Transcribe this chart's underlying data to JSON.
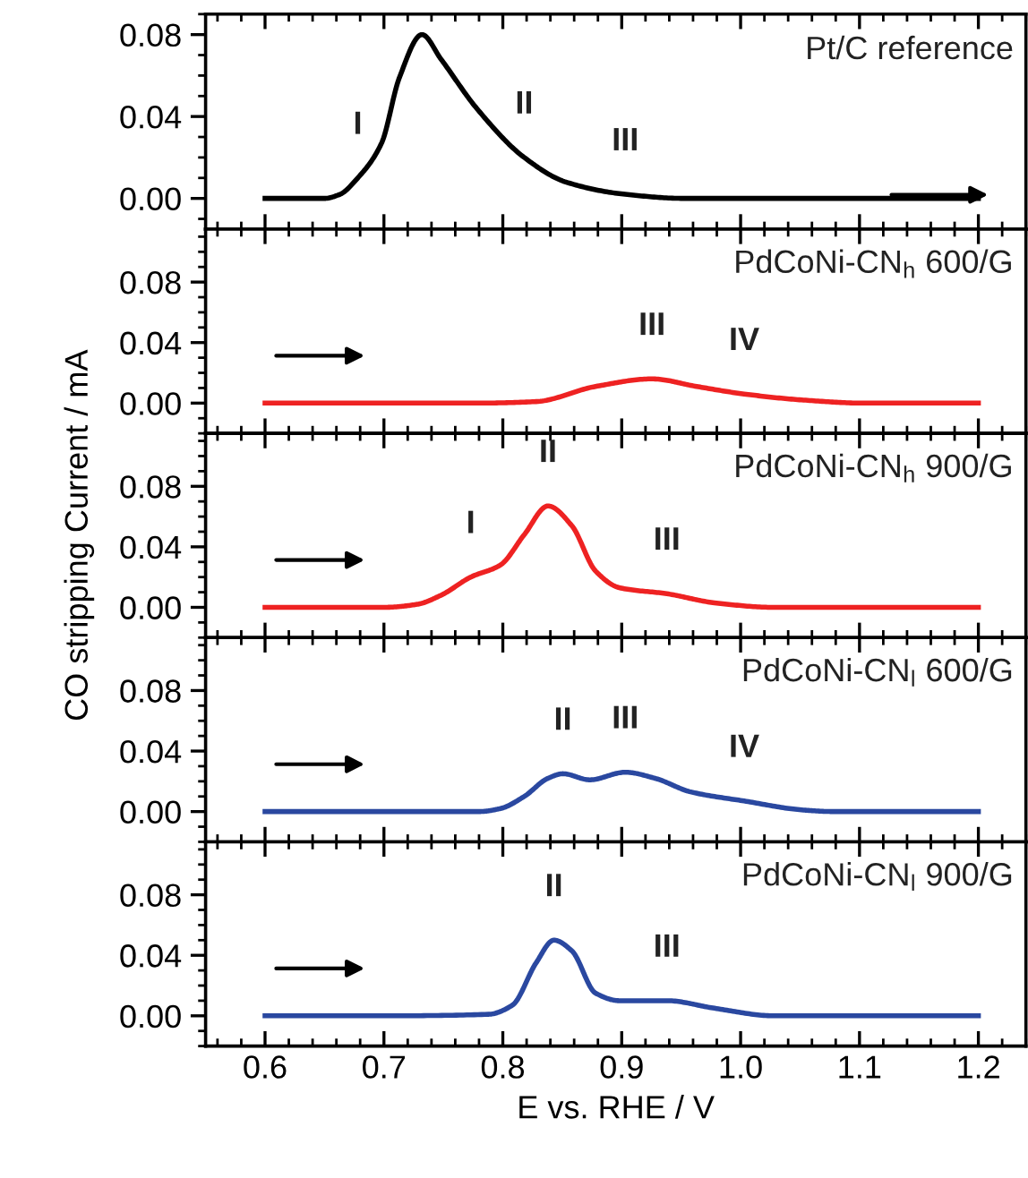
{
  "chart_data": [
    {
      "type": "line",
      "xlim": [
        0.55,
        1.24
      ],
      "ylim": [
        -0.015,
        0.09
      ],
      "xticks": [
        {
          "value": 0.6,
          "label": null
        },
        {
          "value": 0.7,
          "label": null
        },
        {
          "value": 0.8,
          "label": null
        },
        {
          "value": 0.9,
          "label": null
        },
        {
          "value": 1.0,
          "label": null
        },
        {
          "value": 1.1,
          "label": null
        },
        {
          "value": 1.2,
          "label": null
        }
      ],
      "yticks": [
        {
          "value": 0,
          "label": "0.00"
        },
        {
          "value": 0.04,
          "label": "0.04"
        },
        {
          "value": 0.08,
          "label": "0.08"
        }
      ],
      "tick_labels": "y",
      "grid": false,
      "series": [
        {
          "name": "Pt/C reference",
          "color": "#000000",
          "x": [
            0.6,
            0.65,
            0.663,
            0.678,
            0.698,
            0.713,
            0.732,
            0.748,
            0.778,
            0.818,
            0.853,
            0.903,
            0.953,
            1.0,
            1.1,
            1.2
          ],
          "values": [
            0,
            0,
            0.002,
            0.01,
            0.027,
            0.059,
            0.08,
            0.068,
            0.044,
            0.02,
            0.008,
            0.002,
            0,
            0,
            0,
            0
          ]
        }
      ],
      "annotations": [
        {
          "text": "I",
          "x": 0.678,
          "y": 0.01
        },
        {
          "text": "II",
          "x": 0.818,
          "y": 0.02
        },
        {
          "text": "III",
          "x": 0.903,
          "y": 0.002
        }
      ]
    },
    {
      "type": "line",
      "xlim": [
        0.55,
        1.24
      ],
      "ylim": [
        -0.02,
        0.115
      ],
      "xticks": [
        {
          "value": 0.6,
          "label": null
        },
        {
          "value": 0.7,
          "label": null
        },
        {
          "value": 0.8,
          "label": null
        },
        {
          "value": 0.9,
          "label": null
        },
        {
          "value": 1.0,
          "label": null
        },
        {
          "value": 1.1,
          "label": null
        },
        {
          "value": 1.2,
          "label": null
        }
      ],
      "yticks": [
        {
          "value": 0,
          "label": "0.00"
        },
        {
          "value": 0.04,
          "label": "0.04"
        },
        {
          "value": 0.08,
          "label": "0.08"
        }
      ],
      "tick_labels": "y",
      "grid": false,
      "series": [
        {
          "name": "PdCoNi-CN$_{h}$ 600/G",
          "color": "#ee2222",
          "x": [
            0.6,
            0.7,
            0.78,
            0.828,
            0.878,
            0.9255,
            0.963,
            1.003,
            1.053,
            1.103,
            1.2
          ],
          "values": [
            0,
            0,
            0,
            0.001,
            0.011,
            0.016,
            0.011,
            0.006,
            0.002,
            0,
            0
          ]
        }
      ],
      "annotations": [
        {
          "text": "III",
          "x": 0.9255,
          "y": 0.016
        },
        {
          "text": "IV",
          "x": 1.003,
          "y": 0.006
        }
      ]
    },
    {
      "type": "line",
      "xlim": [
        0.55,
        1.24
      ],
      "ylim": [
        -0.02,
        0.115
      ],
      "xticks": [
        {
          "value": 0.6,
          "label": null
        },
        {
          "value": 0.7,
          "label": null
        },
        {
          "value": 0.8,
          "label": null
        },
        {
          "value": 0.9,
          "label": null
        },
        {
          "value": 1.0,
          "label": null
        },
        {
          "value": 1.1,
          "label": null
        },
        {
          "value": 1.2,
          "label": null
        }
      ],
      "yticks": [
        {
          "value": 0,
          "label": "0.00"
        },
        {
          "value": 0.04,
          "label": "0.04"
        },
        {
          "value": 0.08,
          "label": "0.08"
        }
      ],
      "tick_labels": "y",
      "grid": false,
      "ylabel": "CO stripping Current / mA",
      "series": [
        {
          "name": "PdCoNi-CN$_{h}$ 900/G",
          "color": "#ee2222",
          "x": [
            0.6,
            0.7,
            0.728,
            0.748,
            0.773,
            0.798,
            0.818,
            0.838,
            0.858,
            0.878,
            0.898,
            0.938,
            0.978,
            1.028,
            1.2
          ],
          "values": [
            0,
            0,
            0.002,
            0.008,
            0.02,
            0.028,
            0.048,
            0.067,
            0.054,
            0.024,
            0.013,
            0.009,
            0.003,
            0,
            0
          ]
        }
      ],
      "annotations": [
        {
          "text": "I",
          "x": 0.773,
          "y": 0.02
        },
        {
          "text": "II",
          "x": 0.838,
          "y": 0.067
        },
        {
          "text": "III",
          "x": 0.938,
          "y": 0.009
        }
      ]
    },
    {
      "type": "line",
      "xlim": [
        0.55,
        1.24
      ],
      "ylim": [
        -0.02,
        0.115
      ],
      "xticks": [
        {
          "value": 0.6,
          "label": null
        },
        {
          "value": 0.7,
          "label": null
        },
        {
          "value": 0.8,
          "label": null
        },
        {
          "value": 0.9,
          "label": null
        },
        {
          "value": 1.0,
          "label": null
        },
        {
          "value": 1.1,
          "label": null
        },
        {
          "value": 1.2,
          "label": null
        }
      ],
      "yticks": [
        {
          "value": 0,
          "label": "0.00"
        },
        {
          "value": 0.04,
          "label": "0.04"
        },
        {
          "value": 0.08,
          "label": "0.08"
        }
      ],
      "tick_labels": "y",
      "grid": false,
      "series": [
        {
          "name": "PdCoNi-CN$_{l}$ 600/G",
          "color": "#2a48a0",
          "x": [
            0.6,
            0.7,
            0.78,
            0.798,
            0.818,
            0.838,
            0.8505,
            0.873,
            0.903,
            0.928,
            0.958,
            1.003,
            1.053,
            1.078,
            1.2
          ],
          "values": [
            0,
            0,
            0,
            0.002,
            0.01,
            0.022,
            0.025,
            0.021,
            0.026,
            0.022,
            0.013,
            0.007,
            0.001,
            0,
            0
          ]
        }
      ],
      "annotations": [
        {
          "text": "II",
          "x": 0.8505,
          "y": 0.025
        },
        {
          "text": "III",
          "x": 0.903,
          "y": 0.026
        },
        {
          "text": "IV",
          "x": 1.003,
          "y": 0.007
        }
      ]
    },
    {
      "type": "line",
      "xlim": [
        0.55,
        1.24
      ],
      "ylim": [
        -0.02,
        0.115
      ],
      "xticks": [
        {
          "value": 0.6,
          "label": "0.6"
        },
        {
          "value": 0.7,
          "label": "0.7"
        },
        {
          "value": 0.8,
          "label": "0.8"
        },
        {
          "value": 0.9,
          "label": "0.9"
        },
        {
          "value": 1.0,
          "label": "1.0"
        },
        {
          "value": 1.1,
          "label": "1.1"
        },
        {
          "value": 1.2,
          "label": "1.2"
        }
      ],
      "yticks": [
        {
          "value": 0,
          "label": "0.00"
        },
        {
          "value": 0.04,
          "label": "0.04"
        },
        {
          "value": 0.08,
          "label": "0.08"
        }
      ],
      "grid": false,
      "xlabel": "E vs. RHE / V",
      "series": [
        {
          "name": "PdCoNi-CN$_{l}$ 900/G",
          "color": "#2a48a0",
          "x": [
            0.6,
            0.7,
            0.788,
            0.808,
            0.828,
            0.843,
            0.858,
            0.878,
            0.898,
            0.938,
            0.978,
            1.028,
            1.2
          ],
          "values": [
            0,
            0,
            0.001,
            0.007,
            0.035,
            0.05,
            0.043,
            0.015,
            0.01,
            0.01,
            0.005,
            0,
            0
          ]
        }
      ],
      "annotations": [
        {
          "text": "II",
          "x": 0.843,
          "y": 0.05
        },
        {
          "text": "III",
          "x": 0.938,
          "y": 0.01
        }
      ]
    }
  ]
}
